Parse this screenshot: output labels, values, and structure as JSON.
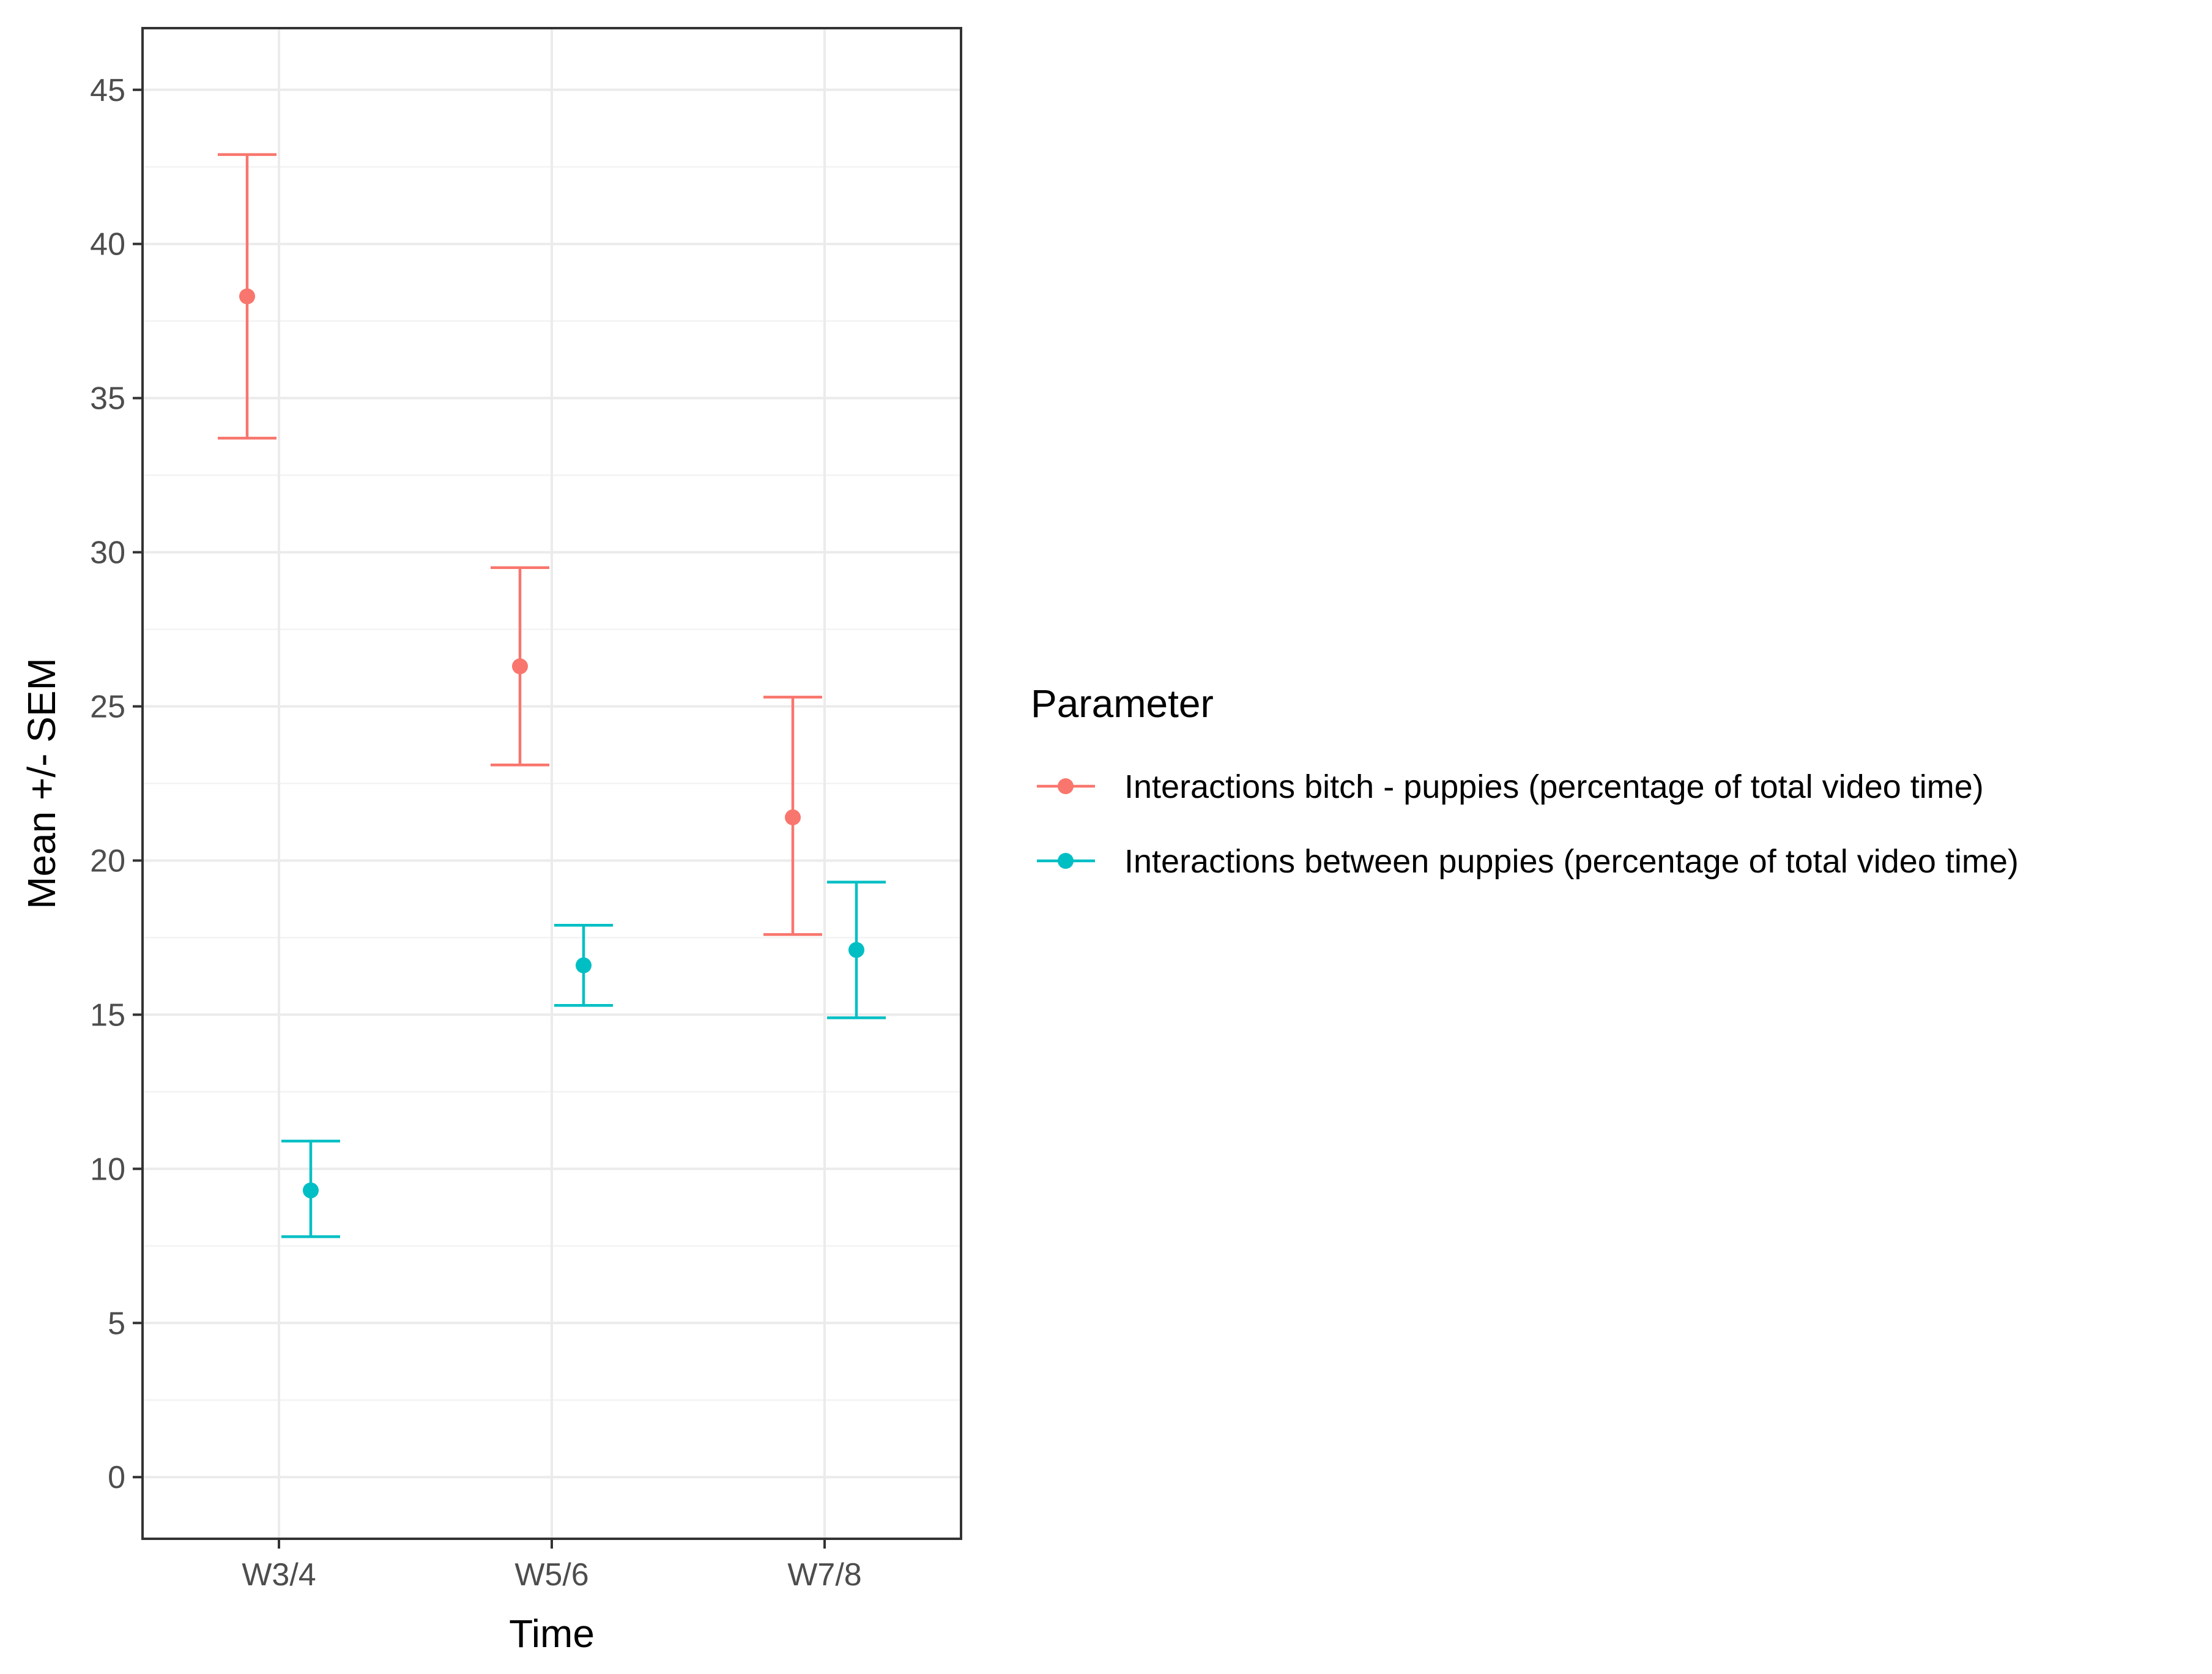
{
  "chart_data": {
    "type": "scatter",
    "title": "",
    "xlabel": "Time",
    "ylabel": "Mean +/- SEM",
    "categories": [
      "W3/4",
      "W5/6",
      "W7/8"
    ],
    "ylim": [
      -2,
      47
    ],
    "yticks": [
      0,
      5,
      10,
      15,
      20,
      25,
      30,
      35,
      40,
      45
    ],
    "grid": true,
    "legend_title": "Parameter",
    "legend_position": "right",
    "error_bars": true,
    "series": [
      {
        "name": "Interactions  bitch - puppies (percentage of total video time)",
        "color": "#F8766D",
        "values": [
          38.3,
          26.3,
          21.4
        ],
        "lower": [
          33.7,
          23.1,
          17.6
        ],
        "upper": [
          42.9,
          29.5,
          25.3
        ]
      },
      {
        "name": "Interactions between puppies (percentage of total video time)",
        "color": "#00BFC4",
        "values": [
          9.3,
          16.6,
          17.1
        ],
        "lower": [
          7.8,
          15.3,
          14.9
        ],
        "upper": [
          10.9,
          17.9,
          19.3
        ]
      }
    ]
  }
}
